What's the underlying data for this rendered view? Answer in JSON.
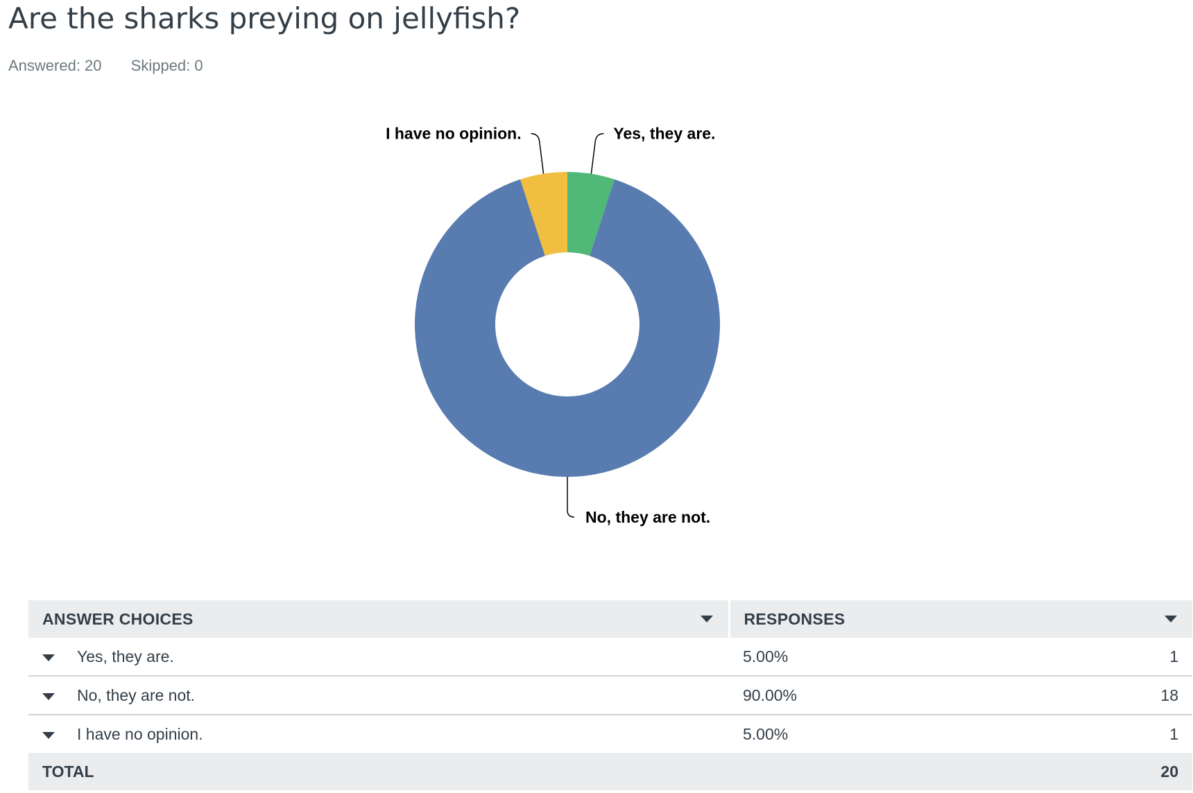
{
  "question": {
    "title": "Are the sharks preying on jellyfish?",
    "answered": "Answered: 20",
    "skipped": "Skipped: 0"
  },
  "chart_data": {
    "type": "pie",
    "donut": true,
    "categories": [
      "Yes, they are.",
      "No, they are not.",
      "I have no opinion."
    ],
    "values": [
      5.0,
      90.0,
      5.0
    ],
    "counts": [
      1,
      18,
      1
    ],
    "colors": [
      "#51b977",
      "#587bb0",
      "#f0be41"
    ],
    "start_angle_deg": 0,
    "direction": "clockwise",
    "legend": "none"
  },
  "table": {
    "headers": {
      "choices": "ANSWER CHOICES",
      "responses": "RESPONSES"
    },
    "rows": [
      {
        "choice": "Yes, they are.",
        "percent": "5.00%",
        "count": "1"
      },
      {
        "choice": "No, they are not.",
        "percent": "90.00%",
        "count": "18"
      },
      {
        "choice": "I have no opinion.",
        "percent": "5.00%",
        "count": "1"
      }
    ],
    "total": {
      "label": "TOTAL",
      "count": "20"
    }
  }
}
